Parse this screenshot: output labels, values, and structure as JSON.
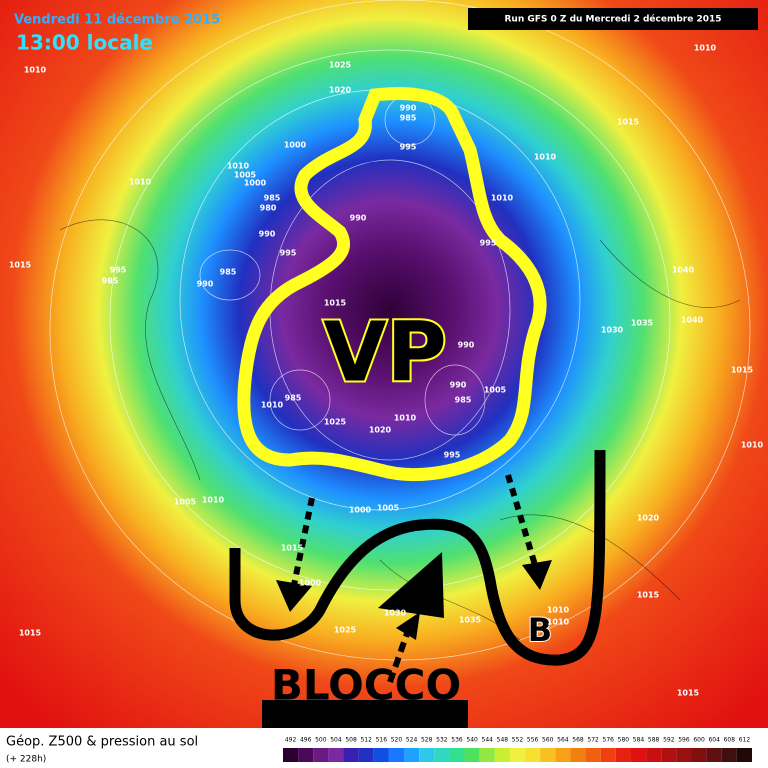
{
  "header": {
    "date": "Vendredi 11 décembre 2015",
    "time": "13:00 locale",
    "run": "Run GFS 0 Z du Mercredi 2 décembre 2015"
  },
  "annotations": {
    "vortex": "VP",
    "block": "BLOCCO",
    "low": "B"
  },
  "isobar_labels": [
    "1010",
    "1025",
    "1020",
    "990",
    "985",
    "1000",
    "995",
    "1010",
    "1005",
    "1000",
    "1010",
    "985",
    "980",
    "990",
    "990",
    "995",
    "985",
    "990",
    "995",
    "985",
    "1015",
    "1015",
    "1010",
    "1015",
    "1010",
    "1010",
    "995",
    "1040",
    "1040",
    "1035",
    "1030",
    "1015",
    "990",
    "990",
    "985",
    "1005",
    "985",
    "1010",
    "1025",
    "1020",
    "1010",
    "995",
    "1010",
    "1005",
    "1010",
    "1000",
    "1005",
    "1020",
    "1015",
    "1010",
    "1010",
    "1035",
    "1030",
    "1025",
    "1015",
    "1015",
    "1015",
    "1000"
  ],
  "footer": {
    "title": "Géop. Z500 & pression au sol",
    "lead": "(+ 228h)"
  },
  "legend": {
    "values": [
      492,
      496,
      500,
      504,
      508,
      512,
      516,
      520,
      524,
      528,
      532,
      536,
      540,
      544,
      548,
      552,
      556,
      560,
      564,
      568,
      572,
      576,
      580,
      584,
      588,
      592,
      596,
      600,
      604,
      608,
      612
    ],
    "colors": [
      "#2a0030",
      "#4a0a5a",
      "#6a1a80",
      "#7a2aa0",
      "#3a20b0",
      "#2030c0",
      "#1050e0",
      "#1878ff",
      "#20a0ff",
      "#30c8e8",
      "#30d8c0",
      "#30e090",
      "#50e060",
      "#90e840",
      "#c8f030",
      "#f0f040",
      "#f8e030",
      "#f8c020",
      "#f8a018",
      "#f08010",
      "#f06010",
      "#f04010",
      "#e82010",
      "#e01010",
      "#c81010",
      "#b01010",
      "#981010",
      "#801010",
      "#601010",
      "#401010",
      "#200808"
    ]
  }
}
